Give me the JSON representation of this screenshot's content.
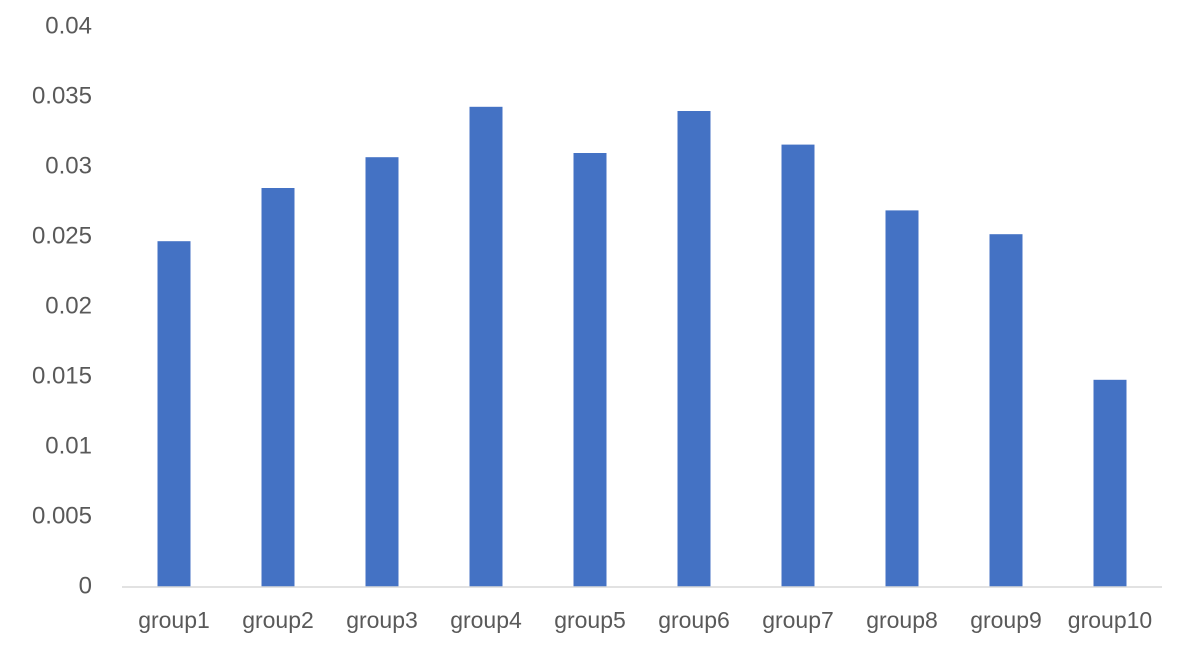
{
  "chart_data": {
    "type": "bar",
    "categories": [
      "group1",
      "group2",
      "group3",
      "group4",
      "group5",
      "group6",
      "group7",
      "group8",
      "group9",
      "group10"
    ],
    "values": [
      0.0247,
      0.0285,
      0.0307,
      0.0343,
      0.031,
      0.034,
      0.0316,
      0.0269,
      0.0252,
      0.0148
    ],
    "ylim": [
      0,
      0.04
    ],
    "yticks": [
      "0",
      "0.005",
      "0.01",
      "0.015",
      "0.02",
      "0.025",
      "0.03",
      "0.035",
      "0.04"
    ],
    "grid": false,
    "legend": "none",
    "title": "",
    "xlabel": "",
    "ylabel": "",
    "colors": {
      "bar": "#4472C4",
      "axis_line": "#D9D9D9",
      "tick_text": "#595959"
    }
  }
}
